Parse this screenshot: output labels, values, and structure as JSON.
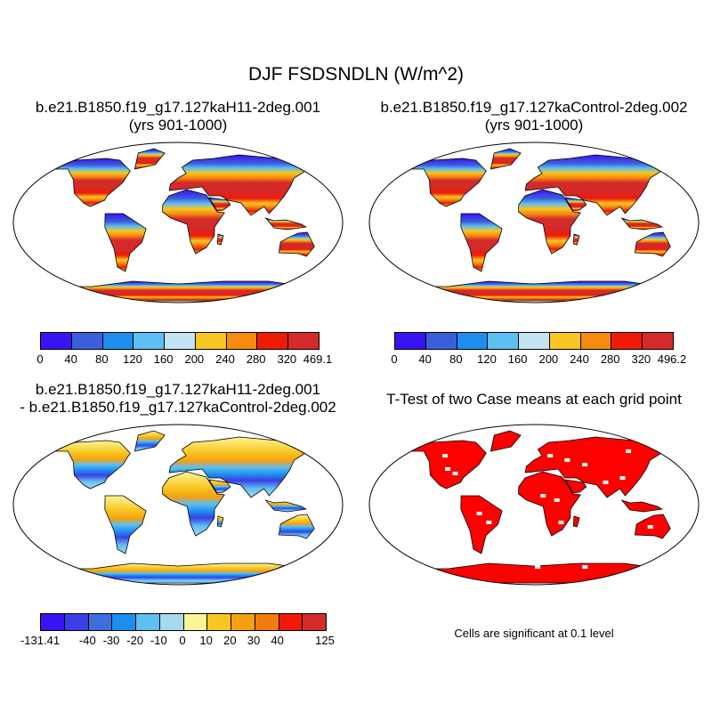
{
  "title": "DJF FSDSNDLN (W/m^2)",
  "panels": {
    "case1": {
      "line1": "b.e21.B1850.f19_g17.127kaH11-2deg.001",
      "line2": "(yrs 901-1000)"
    },
    "case2": {
      "line1": "b.e21.B1850.f19_g17.127kaControl-2deg.002",
      "line2": "(yrs 901-1000)"
    },
    "diff": {
      "line1": "b.e21.B1850.f19_g17.127kaH11-2deg.001",
      "line2": "- b.e21.B1850.f19_g17.127kaControl-2deg.002"
    },
    "ttest": {
      "line1": "T-Test of two Case means at each grid point"
    }
  },
  "colorbars": {
    "case1": {
      "labels": [
        "0",
        "40",
        "80",
        "120",
        "160",
        "200",
        "240",
        "280",
        "320",
        "469.1"
      ],
      "colors": [
        "#3a13f5",
        "#3c5edc",
        "#1d8ef0",
        "#5ebff2",
        "#c4e3f3",
        "#f8c622",
        "#f58b0f",
        "#ef1b07",
        "#d42a2a"
      ]
    },
    "case2": {
      "labels": [
        "0",
        "40",
        "80",
        "120",
        "160",
        "200",
        "240",
        "280",
        "320",
        "496.2"
      ],
      "colors": [
        "#3a13f5",
        "#3c5edc",
        "#1d8ef0",
        "#5ebff2",
        "#c4e3f3",
        "#f8c622",
        "#f58b0f",
        "#ef1b07",
        "#d42a2a"
      ]
    },
    "diff": {
      "labels": [
        "-131.41",
        "",
        "-40",
        "-30",
        "-20",
        "-10",
        "0",
        "10",
        "20",
        "30",
        "40",
        "",
        "125"
      ],
      "colors": [
        "#3a13f5",
        "#3c3fe6",
        "#3c6fdc",
        "#1d8ef0",
        "#5ebff2",
        "#a6d8f0",
        "#fbf597",
        "#f8c622",
        "#f5a012",
        "#f57a0e",
        "#ef1b07",
        "#d42a2a"
      ]
    }
  },
  "note": "Cells are significant at 0.1 level"
}
